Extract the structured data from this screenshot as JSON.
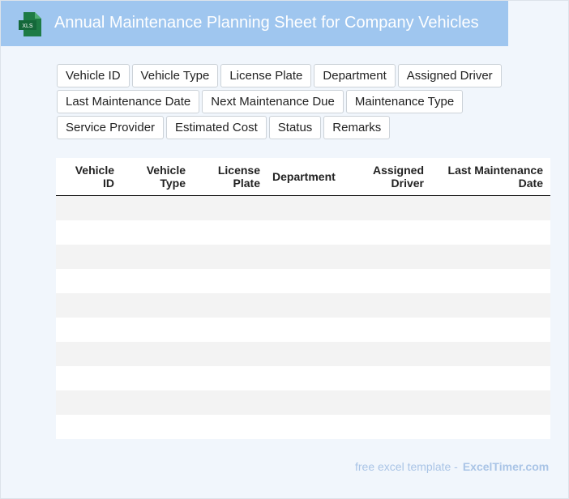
{
  "header": {
    "title": "Annual Maintenance Planning Sheet for Company Vehicles",
    "icon": "XLS"
  },
  "tags": [
    "Vehicle ID",
    "Vehicle Type",
    "License Plate",
    "Department",
    "Assigned Driver",
    "Last Maintenance Date",
    "Next Maintenance Due",
    "Maintenance Type",
    "Service Provider",
    "Estimated Cost",
    "Status",
    "Remarks"
  ],
  "table": {
    "columns": [
      [
        "Vehicle",
        "ID"
      ],
      [
        "Vehicle",
        "Type"
      ],
      [
        "License",
        "Plate"
      ],
      [
        "Department"
      ],
      [
        "Assigned",
        "Driver"
      ],
      [
        "Last Maintenance",
        "Date"
      ]
    ]
  },
  "footer": {
    "text": "free excel template -",
    "site": "ExcelTimer.com"
  }
}
